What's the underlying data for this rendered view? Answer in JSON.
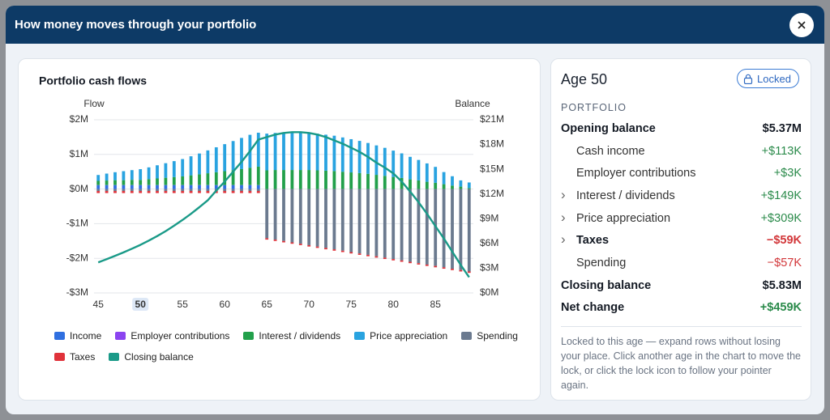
{
  "header": {
    "title": "How money moves through your portfolio"
  },
  "chart_data": {
    "type": "bar",
    "title": "Portfolio cash flows",
    "y_label": "Flow",
    "y2_label": "Balance",
    "x": [
      45,
      46,
      47,
      48,
      49,
      50,
      51,
      52,
      53,
      54,
      55,
      56,
      57,
      58,
      59,
      60,
      61,
      62,
      63,
      64,
      65,
      66,
      67,
      68,
      69,
      70,
      71,
      72,
      73,
      74,
      75,
      76,
      77,
      78,
      79,
      80,
      81,
      82,
      83,
      84,
      85,
      86,
      87,
      88,
      89
    ],
    "xlim": [
      44.5,
      89.5
    ],
    "xticks": [
      45,
      50,
      55,
      60,
      65,
      70,
      75,
      80,
      85
    ],
    "selected_x": 50,
    "ylim": [
      -3,
      2
    ],
    "yticks": [
      {
        "value": 2,
        "label": "$2M"
      },
      {
        "value": 1,
        "label": "$1M"
      },
      {
        "value": 0,
        "label": "$0M"
      },
      {
        "value": -1,
        "label": "-$1M"
      },
      {
        "value": -2,
        "label": "-$2M"
      },
      {
        "value": -3,
        "label": "-$3M"
      }
    ],
    "y2lim": [
      0,
      21
    ],
    "y2ticks": [
      {
        "value": 21,
        "label": "$21M"
      },
      {
        "value": 18,
        "label": "$18M"
      },
      {
        "value": 15,
        "label": "$15M"
      },
      {
        "value": 12,
        "label": "$12M"
      },
      {
        "value": 9,
        "label": "$9M"
      },
      {
        "value": 6,
        "label": "$6M"
      },
      {
        "value": 3,
        "label": "$3M"
      },
      {
        "value": 0,
        "label": "$0M"
      }
    ],
    "grid": true,
    "series": [
      {
        "name": "Income",
        "color": "#2f6fe0",
        "values": [
          0.113,
          0.113,
          0.113,
          0.113,
          0.113,
          0.113,
          0.113,
          0.113,
          0.113,
          0.113,
          0.113,
          0.113,
          0.113,
          0.113,
          0.113,
          0.113,
          0.113,
          0.113,
          0.113,
          0.113,
          0,
          0,
          0,
          0,
          0,
          0,
          0,
          0,
          0,
          0,
          0,
          0,
          0,
          0,
          0,
          0,
          0,
          0,
          0,
          0,
          0,
          0,
          0,
          0,
          0
        ]
      },
      {
        "name": "Employer contributions",
        "color": "#8b44f0",
        "values": [
          0.003,
          0.003,
          0.003,
          0.003,
          0.003,
          0.003,
          0.003,
          0.003,
          0.003,
          0.003,
          0.003,
          0.003,
          0.003,
          0.003,
          0.003,
          0.003,
          0.003,
          0.003,
          0.003,
          0.003,
          0,
          0,
          0,
          0,
          0,
          0,
          0,
          0,
          0,
          0,
          0,
          0,
          0,
          0,
          0,
          0,
          0,
          0,
          0,
          0,
          0,
          0,
          0,
          0,
          0
        ]
      },
      {
        "name": "Interest / dividends",
        "color": "#22a04b",
        "values": [
          0.12,
          0.13,
          0.14,
          0.14,
          0.15,
          0.149,
          0.17,
          0.19,
          0.21,
          0.23,
          0.25,
          0.28,
          0.31,
          0.34,
          0.37,
          0.4,
          0.43,
          0.46,
          0.5,
          0.53,
          0.54,
          0.55,
          0.55,
          0.55,
          0.55,
          0.55,
          0.54,
          0.53,
          0.52,
          0.5,
          0.48,
          0.46,
          0.44,
          0.41,
          0.38,
          0.35,
          0.32,
          0.28,
          0.25,
          0.21,
          0.18,
          0.14,
          0.1,
          0.07,
          0.03
        ]
      },
      {
        "name": "Price appreciation",
        "color": "#29a3e0",
        "values": [
          0.17,
          0.2,
          0.23,
          0.26,
          0.28,
          0.309,
          0.34,
          0.38,
          0.42,
          0.46,
          0.5,
          0.55,
          0.6,
          0.66,
          0.72,
          0.78,
          0.84,
          0.9,
          0.95,
          0.98,
          1.06,
          1.07,
          1.08,
          1.08,
          1.08,
          1.07,
          1.06,
          1.04,
          1.02,
          0.99,
          0.96,
          0.93,
          0.89,
          0.85,
          0.81,
          0.76,
          0.71,
          0.65,
          0.59,
          0.53,
          0.46,
          0.35,
          0.27,
          0.18,
          0.16
        ]
      },
      {
        "name": "Spending",
        "color": "#6b7a8f",
        "values": [
          -0.057,
          -0.057,
          -0.057,
          -0.057,
          -0.057,
          -0.057,
          -0.057,
          -0.057,
          -0.057,
          -0.057,
          -0.057,
          -0.057,
          -0.057,
          -0.057,
          -0.057,
          -0.057,
          -0.057,
          -0.057,
          -0.057,
          -0.057,
          -1.42,
          -1.46,
          -1.5,
          -1.54,
          -1.58,
          -1.62,
          -1.66,
          -1.7,
          -1.74,
          -1.78,
          -1.82,
          -1.86,
          -1.9,
          -1.94,
          -1.98,
          -2.02,
          -2.06,
          -2.1,
          -2.14,
          -2.18,
          -2.22,
          -2.26,
          -2.3,
          -2.34,
          -2.38
        ]
      },
      {
        "name": "Taxes",
        "color": "#e0323a",
        "values": [
          -0.059,
          -0.059,
          -0.059,
          -0.059,
          -0.059,
          -0.059,
          -0.059,
          -0.059,
          -0.059,
          -0.059,
          -0.059,
          -0.059,
          -0.059,
          -0.059,
          -0.059,
          -0.059,
          -0.059,
          -0.059,
          -0.059,
          -0.059,
          -0.04,
          -0.04,
          -0.04,
          -0.04,
          -0.04,
          -0.04,
          -0.04,
          -0.04,
          -0.04,
          -0.04,
          -0.04,
          -0.04,
          -0.04,
          -0.04,
          -0.04,
          -0.04,
          -0.04,
          -0.04,
          -0.04,
          -0.04,
          -0.04,
          -0.04,
          -0.04,
          -0.04,
          -0.04
        ]
      },
      {
        "name": "Closing balance",
        "color": "#1a9a88",
        "type": "line",
        "axis": "y2",
        "values": [
          3.7,
          4.1,
          4.5,
          4.92,
          5.37,
          5.83,
          6.35,
          6.9,
          7.5,
          8.15,
          8.85,
          9.6,
          10.4,
          11.25,
          12.4,
          13.5,
          14.7,
          15.9,
          17.2,
          18.6,
          18.9,
          19.2,
          19.4,
          19.5,
          19.5,
          19.4,
          19.2,
          18.9,
          18.5,
          18.1,
          17.6,
          17.1,
          16.5,
          15.8,
          15.2,
          14.5,
          13.5,
          12.3,
          11,
          9.6,
          8.1,
          6.6,
          5,
          3.4,
          1.9
        ]
      }
    ]
  },
  "panel": {
    "title": "Age 50",
    "lock_button": "Locked",
    "section": "PORTFOLIO",
    "rows": [
      {
        "label": "Opening balance",
        "value": "$5.37M",
        "bold": true
      },
      {
        "label": "Cash income",
        "value": "+$113K",
        "sub": true
      },
      {
        "label": "Employer contributions",
        "value": "+$3K",
        "sub": true
      },
      {
        "label": "Interest / dividends",
        "value": "+$149K",
        "sub": true,
        "expandable": true
      },
      {
        "label": "Price appreciation",
        "value": "+$309K",
        "sub": true,
        "expandable": true
      },
      {
        "label": "Taxes",
        "value": "−$59K",
        "sub": true,
        "expandable": true,
        "bold": true
      },
      {
        "label": "Spending",
        "value": "−$57K",
        "sub": true
      },
      {
        "label": "Closing balance",
        "value": "$5.83M",
        "bold": true
      },
      {
        "label": "Net change",
        "value": "+$459K",
        "bold": true
      }
    ],
    "note": "Locked to this age — expand rows without losing your place. Click another age in the chart to move the lock, or click the lock icon to follow your pointer again."
  }
}
